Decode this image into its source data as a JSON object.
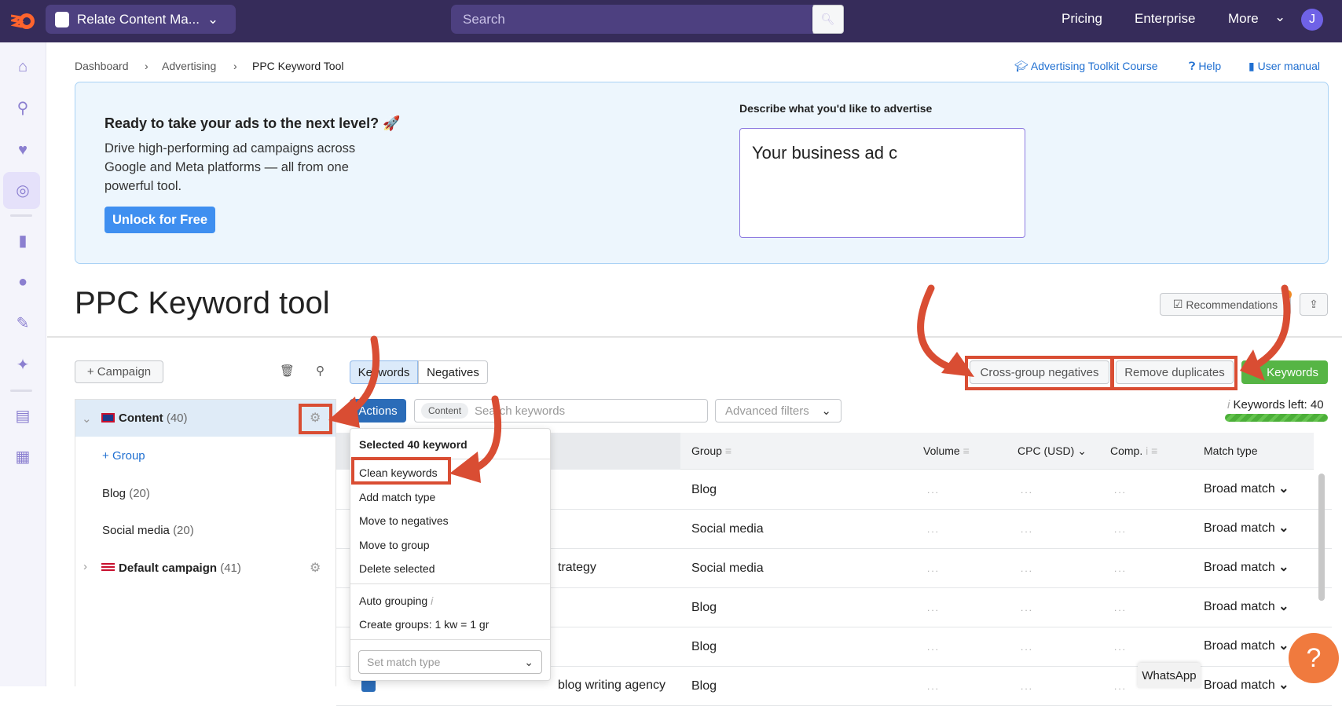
{
  "topbar": {
    "project": "Relate Content Ma...",
    "search_placeholder": "Search",
    "links": [
      "Pricing",
      "Enterprise",
      "More"
    ],
    "avatar": "J"
  },
  "breadcrumb": [
    "Dashboard",
    "Advertising",
    "PPC Keyword Tool"
  ],
  "top_links": {
    "course": "Advertising Toolkit Course",
    "help": "Help",
    "manual": "User manual"
  },
  "banner": {
    "title": "Ready to take your ads to the next level? 🚀",
    "text": "Drive high-performing ad campaigns across Google and Meta platforms — all from one powerful tool.",
    "button": "Unlock for Free",
    "describe_label": "Describe what you'd like to advertise",
    "describe_value": "Your business ad c"
  },
  "page_title": "PPC Keyword tool",
  "header_buttons": {
    "recommendations": "Recommendations"
  },
  "left": {
    "add_campaign": "Campaign",
    "campaigns": [
      {
        "name": "Content",
        "count": "(40)",
        "flag": "UK",
        "expanded": true,
        "groups": [
          {
            "name": "Blog",
            "count": "(20)"
          },
          {
            "name": "Social media",
            "count": "(20)"
          }
        ],
        "add_group": "Group"
      },
      {
        "name": "Default campaign",
        "count": "(41)",
        "flag": "US",
        "expanded": false
      }
    ]
  },
  "tabs": [
    "Keywords",
    "Negatives"
  ],
  "toolbar": {
    "actions": "Actions",
    "search_tag": "Content",
    "search_placeholder": "Search keywords",
    "advanced_filters": "Advanced filters",
    "cross_group": "Cross-group negatives",
    "remove_duplicates": "Remove duplicates",
    "keywords": "Keywords",
    "keywords_left": "Keywords left: 40",
    "keywords_left_fraction": 1.0
  },
  "table": {
    "headers": [
      "Group",
      "Volume",
      "CPC (USD)",
      "Comp.",
      "Match type"
    ],
    "rows": [
      {
        "keyword": "",
        "group": "Blog",
        "match": "Broad match"
      },
      {
        "keyword": "",
        "group": "Social media",
        "match": "Broad match"
      },
      {
        "keyword": "trategy",
        "group": "Social media",
        "match": "Broad match"
      },
      {
        "keyword": "",
        "group": "Blog",
        "match": "Broad match"
      },
      {
        "keyword": "",
        "group": "Blog",
        "match": "Broad match"
      },
      {
        "keyword": "blog writing agency",
        "group": "Blog",
        "match": "Broad match"
      }
    ],
    "placeholder": "..."
  },
  "menu": {
    "title": "Selected 40 keyword",
    "items": [
      "Clean keywords",
      "Add match type",
      "Move to negatives",
      "Move to group",
      "Delete selected"
    ],
    "items2": [
      "Auto grouping",
      "Create groups: 1 kw = 1 gr"
    ],
    "select_placeholder": "Set match type"
  },
  "widgets": {
    "help": "?",
    "whatsapp": "WhatsApp"
  },
  "colors": {
    "topbar": "#362c5a",
    "accent": "#1f6fd1",
    "green": "#4caf39",
    "annotation": "#d94d33"
  }
}
